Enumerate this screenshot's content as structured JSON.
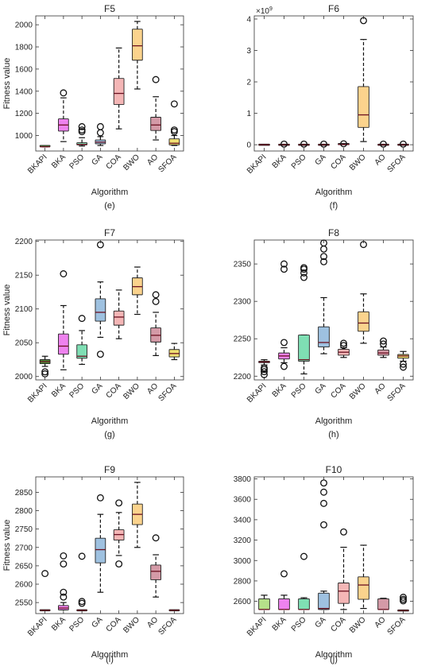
{
  "chart_data": [
    {
      "type": "box",
      "title": "F5",
      "caption": "(e)",
      "xlabel": "Algorithm",
      "ylabel": "Fitness value",
      "ylim": [
        860,
        2080
      ],
      "yticks": [
        1000,
        1200,
        1400,
        1600,
        1800,
        2000
      ],
      "exponent": "",
      "categories": [
        "BKAPI",
        "BKA",
        "PSO",
        "GA",
        "COA",
        "BWO",
        "AO",
        "SFOA"
      ],
      "boxes": [
        {
          "whisker_low": 898,
          "q1": 898,
          "median": 898,
          "q3": 905,
          "whisker_high": 908,
          "outliers": [],
          "color": "#4f8f3a"
        },
        {
          "whisker_low": 945,
          "q1": 1040,
          "median": 1095,
          "q3": 1150,
          "whisker_high": 1340,
          "outliers": [
            1385
          ],
          "color": "#ee82ee"
        },
        {
          "whisker_low": 905,
          "q1": 915,
          "median": 920,
          "q3": 935,
          "whisker_high": 980,
          "outliers": [
            1050,
            1080,
            1035
          ],
          "color": "#7fdfb4"
        },
        {
          "whisker_low": 910,
          "q1": 925,
          "median": 940,
          "q3": 960,
          "whisker_high": 990,
          "outliers": [
            1025,
            1080
          ],
          "color": "#9ec1e0"
        },
        {
          "whisker_low": 1060,
          "q1": 1280,
          "median": 1380,
          "q3": 1515,
          "whisker_high": 1790,
          "outliers": [],
          "color": "#f4b6b6"
        },
        {
          "whisker_low": 1420,
          "q1": 1680,
          "median": 1810,
          "q3": 1960,
          "whisker_high": 2030,
          "outliers": [],
          "color": "#fbd38d"
        },
        {
          "whisker_low": 960,
          "q1": 1045,
          "median": 1095,
          "q3": 1165,
          "whisker_high": 1350,
          "outliers": [
            1505
          ],
          "color": "#d49aa7"
        },
        {
          "whisker_low": 910,
          "q1": 915,
          "median": 930,
          "q3": 970,
          "whisker_high": 1000,
          "outliers": [
            1035,
            1050,
            1285
          ],
          "color": "#f0e073"
        }
      ]
    },
    {
      "type": "box",
      "title": "F6",
      "caption": "(f)",
      "xlabel": "Algorithm",
      "ylabel": "",
      "ylim": [
        -0.2,
        4.1
      ],
      "yticks": [
        0,
        1,
        2,
        3,
        4
      ],
      "exponent": "×10",
      "exponent_power": "9",
      "categories": [
        "BKAPI",
        "BKA",
        "PSO",
        "GA",
        "COA",
        "BWO",
        "AO",
        "SFOA"
      ],
      "boxes": [
        {
          "whisker_low": 0,
          "q1": 0,
          "median": 0,
          "q3": 0,
          "whisker_high": 0,
          "outliers": [],
          "color": "#4f8f3a"
        },
        {
          "whisker_low": 0,
          "q1": 0,
          "median": 0,
          "q3": 0,
          "whisker_high": 0,
          "outliers": [
            0.02
          ],
          "color": "#ee82ee"
        },
        {
          "whisker_low": 0,
          "q1": 0,
          "median": 0,
          "q3": 0,
          "whisker_high": 0,
          "outliers": [
            0.02
          ],
          "color": "#7fdfb4"
        },
        {
          "whisker_low": 0,
          "q1": 0,
          "median": 0,
          "q3": 0,
          "whisker_high": 0,
          "outliers": [
            0.02
          ],
          "color": "#9ec1e0"
        },
        {
          "whisker_low": 0,
          "q1": 0,
          "median": 0.01,
          "q3": 0.02,
          "whisker_high": 0.04,
          "outliers": [
            0.03
          ],
          "color": "#f4b6b6"
        },
        {
          "whisker_low": 0.1,
          "q1": 0.55,
          "median": 0.95,
          "q3": 1.85,
          "whisker_high": 3.35,
          "outliers": [
            3.95
          ],
          "color": "#fbd38d"
        },
        {
          "whisker_low": 0,
          "q1": 0,
          "median": 0,
          "q3": 0,
          "whisker_high": 0,
          "outliers": [
            0.02
          ],
          "color": "#d49aa7"
        },
        {
          "whisker_low": 0,
          "q1": 0,
          "median": 0,
          "q3": 0,
          "whisker_high": 0,
          "outliers": [
            0.02
          ],
          "color": "#f0e073"
        }
      ]
    },
    {
      "type": "box",
      "title": "F7",
      "caption": "(g)",
      "xlabel": "Algorithm",
      "ylabel": "Fitness value",
      "ylim": [
        1995,
        2202
      ],
      "yticks": [
        2000,
        2050,
        2100,
        2150,
        2200
      ],
      "exponent": "",
      "categories": [
        "BKAPI",
        "BKA",
        "PSO",
        "GA",
        "COA",
        "BWO",
        "AO",
        "SFOA"
      ],
      "boxes": [
        {
          "whisker_low": 2015,
          "q1": 2019,
          "median": 2022,
          "q3": 2025,
          "whisker_high": 2030,
          "outliers": [
            2004,
            2007
          ],
          "color": "#4f8f3a"
        },
        {
          "whisker_low": 2010,
          "q1": 2033,
          "median": 2045,
          "q3": 2063,
          "whisker_high": 2105,
          "outliers": [
            2152
          ],
          "color": "#ee82ee"
        },
        {
          "whisker_low": 2018,
          "q1": 2027,
          "median": 2030,
          "q3": 2047,
          "whisker_high": 2068,
          "outliers": [
            2086
          ],
          "color": "#7fdfb4"
        },
        {
          "whisker_low": 2058,
          "q1": 2082,
          "median": 2095,
          "q3": 2115,
          "whisker_high": 2140,
          "outliers": [
            2033,
            2195
          ],
          "color": "#9ec1e0"
        },
        {
          "whisker_low": 2056,
          "q1": 2076,
          "median": 2088,
          "q3": 2097,
          "whisker_high": 2128,
          "outliers": [],
          "color": "#f4b6b6"
        },
        {
          "whisker_low": 2092,
          "q1": 2121,
          "median": 2133,
          "q3": 2146,
          "whisker_high": 2162,
          "outliers": [],
          "color": "#fbd38d"
        },
        {
          "whisker_low": 2031,
          "q1": 2051,
          "median": 2061,
          "q3": 2072,
          "whisker_high": 2095,
          "outliers": [
            2111,
            2121
          ],
          "color": "#d49aa7"
        },
        {
          "whisker_low": 2025,
          "q1": 2029,
          "median": 2034,
          "q3": 2040,
          "whisker_high": 2049,
          "outliers": [],
          "color": "#f0e073"
        }
      ]
    },
    {
      "type": "box",
      "title": "F8",
      "caption": "(h)",
      "xlabel": "Algorithm",
      "ylabel": "",
      "ylim": [
        2195,
        2382
      ],
      "yticks": [
        2200,
        2250,
        2300,
        2350
      ],
      "exponent": "",
      "categories": [
        "BKAPI",
        "BKA",
        "PSO",
        "GA",
        "COA",
        "BWO",
        "AO",
        "SFOA"
      ],
      "boxes": [
        {
          "whisker_low": 2215,
          "q1": 2218,
          "median": 2219,
          "q3": 2220,
          "whisker_high": 2222,
          "outliers": [
            2202,
            2206,
            2209,
            2211
          ],
          "color": "#4f8f3a"
        },
        {
          "whisker_low": 2218,
          "q1": 2223,
          "median": 2227,
          "q3": 2231,
          "whisker_high": 2238,
          "outliers": [
            2213,
            2245,
            2343,
            2350
          ],
          "color": "#ee82ee"
        },
        {
          "whisker_low": 2203,
          "q1": 2220,
          "median": 2222,
          "q3": 2255,
          "whisker_high": 2255,
          "outliers": [
            2332,
            2338,
            2343,
            2345
          ],
          "color": "#7fdfb4"
        },
        {
          "whisker_low": 2230,
          "q1": 2239,
          "median": 2245,
          "q3": 2266,
          "whisker_high": 2305,
          "outliers": [
            2353,
            2360,
            2370,
            2378
          ],
          "color": "#9ec1e0"
        },
        {
          "whisker_low": 2225,
          "q1": 2228,
          "median": 2232,
          "q3": 2236,
          "whisker_high": 2238,
          "outliers": [
            2241,
            2244
          ],
          "color": "#f4b6b6"
        },
        {
          "whisker_low": 2244,
          "q1": 2260,
          "median": 2271,
          "q3": 2286,
          "whisker_high": 2310,
          "outliers": [
            2376
          ],
          "color": "#fbd38d"
        },
        {
          "whisker_low": 2225,
          "q1": 2228,
          "median": 2231,
          "q3": 2235,
          "whisker_high": 2239,
          "outliers": [
            2243,
            2247
          ],
          "color": "#d49aa7"
        },
        {
          "whisker_low": 2220,
          "q1": 2224,
          "median": 2227,
          "q3": 2229,
          "whisker_high": 2233,
          "outliers": [
            2212,
            2216
          ],
          "color": "#f0e073"
        }
      ]
    },
    {
      "type": "box",
      "title": "F9",
      "caption": "(i)",
      "xlabel": "Algorithm",
      "ylabel": "Fitness value",
      "ylim": [
        2520,
        2892
      ],
      "yticks": [
        2550,
        2600,
        2650,
        2700,
        2750,
        2800,
        2850
      ],
      "exponent": "",
      "categories": [
        "BKAPI",
        "BKA",
        "PSO",
        "GA",
        "COA",
        "BWO",
        "AO",
        "SFOA"
      ],
      "boxes": [
        {
          "whisker_low": 2529,
          "q1": 2529,
          "median": 2529,
          "q3": 2529,
          "whisker_high": 2529,
          "outliers": [
            2629
          ],
          "color": "#4f8f3a"
        },
        {
          "whisker_low": 2530,
          "q1": 2530,
          "median": 2535,
          "q3": 2542,
          "whisker_high": 2550,
          "outliers": [
            2565,
            2578,
            2655,
            2677
          ],
          "color": "#ee82ee"
        },
        {
          "whisker_low": 2529,
          "q1": 2529,
          "median": 2529,
          "q3": 2529,
          "whisker_high": 2529,
          "outliers": [
            2548,
            2553,
            2676
          ],
          "color": "#7fdfb4"
        },
        {
          "whisker_low": 2578,
          "q1": 2658,
          "median": 2694,
          "q3": 2725,
          "whisker_high": 2790,
          "outliers": [
            2835
          ],
          "color": "#9ec1e0"
        },
        {
          "whisker_low": 2678,
          "q1": 2720,
          "median": 2735,
          "q3": 2748,
          "whisker_high": 2795,
          "outliers": [
            2655,
            2821
          ],
          "color": "#f4b6b6"
        },
        {
          "whisker_low": 2700,
          "q1": 2762,
          "median": 2790,
          "q3": 2818,
          "whisker_high": 2877,
          "outliers": [],
          "color": "#fbd38d"
        },
        {
          "whisker_low": 2565,
          "q1": 2612,
          "median": 2635,
          "q3": 2652,
          "whisker_high": 2680,
          "outliers": [
            2726
          ],
          "color": "#d49aa7"
        },
        {
          "whisker_low": 2529,
          "q1": 2529,
          "median": 2529,
          "q3": 2529,
          "whisker_high": 2529,
          "outliers": [],
          "color": "#f0e073"
        }
      ]
    },
    {
      "type": "box",
      "title": "F10",
      "caption": "(j)",
      "xlabel": "Algorithm",
      "ylabel": "",
      "ylim": [
        2480,
        3820
      ],
      "yticks": [
        2600,
        2800,
        3000,
        3200,
        3400,
        3600,
        3800
      ],
      "exponent": "",
      "categories": [
        "BKAPI",
        "BKA",
        "PSO",
        "GA",
        "COA",
        "BWO",
        "AO",
        "SFOA"
      ],
      "boxes": [
        {
          "whisker_low": 2520,
          "q1": 2520,
          "median": 2520,
          "q3": 2625,
          "whisker_high": 2660,
          "outliers": [],
          "color": "#b6e08a"
        },
        {
          "whisker_low": 2520,
          "q1": 2520,
          "median": 2520,
          "q3": 2625,
          "whisker_high": 2660,
          "outliers": [
            2870
          ],
          "color": "#ee82ee"
        },
        {
          "whisker_low": 2520,
          "q1": 2520,
          "median": 2520,
          "q3": 2625,
          "whisker_high": 2635,
          "outliers": [
            3040
          ],
          "color": "#7fdfb4"
        },
        {
          "whisker_low": 2520,
          "q1": 2520,
          "median": 2530,
          "q3": 2680,
          "whisker_high": 2700,
          "outliers": [
            3350,
            3560,
            3670,
            3760
          ],
          "color": "#9ec1e0"
        },
        {
          "whisker_low": 2520,
          "q1": 2580,
          "median": 2700,
          "q3": 2780,
          "whisker_high": 3130,
          "outliers": [
            3280
          ],
          "color": "#f4b6b6"
        },
        {
          "whisker_low": 2530,
          "q1": 2620,
          "median": 2760,
          "q3": 2840,
          "whisker_high": 3150,
          "outliers": [],
          "color": "#fbd38d"
        },
        {
          "whisker_low": 2520,
          "q1": 2520,
          "median": 2520,
          "q3": 2625,
          "whisker_high": 2630,
          "outliers": [],
          "color": "#d49aa7"
        },
        {
          "whisker_low": 2510,
          "q1": 2510,
          "median": 2510,
          "q3": 2510,
          "whisker_high": 2510,
          "outliers": [
            2605,
            2620,
            2640
          ],
          "color": "#f0e073"
        }
      ]
    }
  ]
}
